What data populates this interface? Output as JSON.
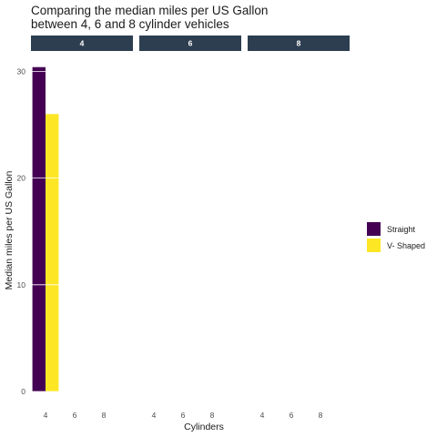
{
  "chart_data": {
    "type": "bar",
    "title_lines": [
      "Comparing the median miles per US Gallon",
      "between 4, 6 and 8 cylinder vehicles"
    ],
    "xlabel": "Cylinders",
    "ylabel": "Median miles per US Gallon",
    "facet_labels": [
      "4",
      "6",
      "8"
    ],
    "x_categories": [
      "4",
      "6",
      "8"
    ],
    "y_ticks": [
      0,
      10,
      20,
      30
    ],
    "ylim": [
      0,
      31.4
    ],
    "legend_position": "right",
    "series": [
      {
        "name": "Straight",
        "color": "#440154",
        "values": [
          [
            30.4,
            null,
            null
          ],
          [
            null,
            null,
            null
          ],
          [
            null,
            null,
            null
          ]
        ]
      },
      {
        "name": "V- Shaped",
        "color": "#FDE725",
        "values": [
          [
            26.0,
            null,
            null
          ],
          [
            null,
            null,
            null
          ],
          [
            null,
            null,
            null
          ]
        ]
      }
    ],
    "strip_color": "#2D3E50"
  }
}
